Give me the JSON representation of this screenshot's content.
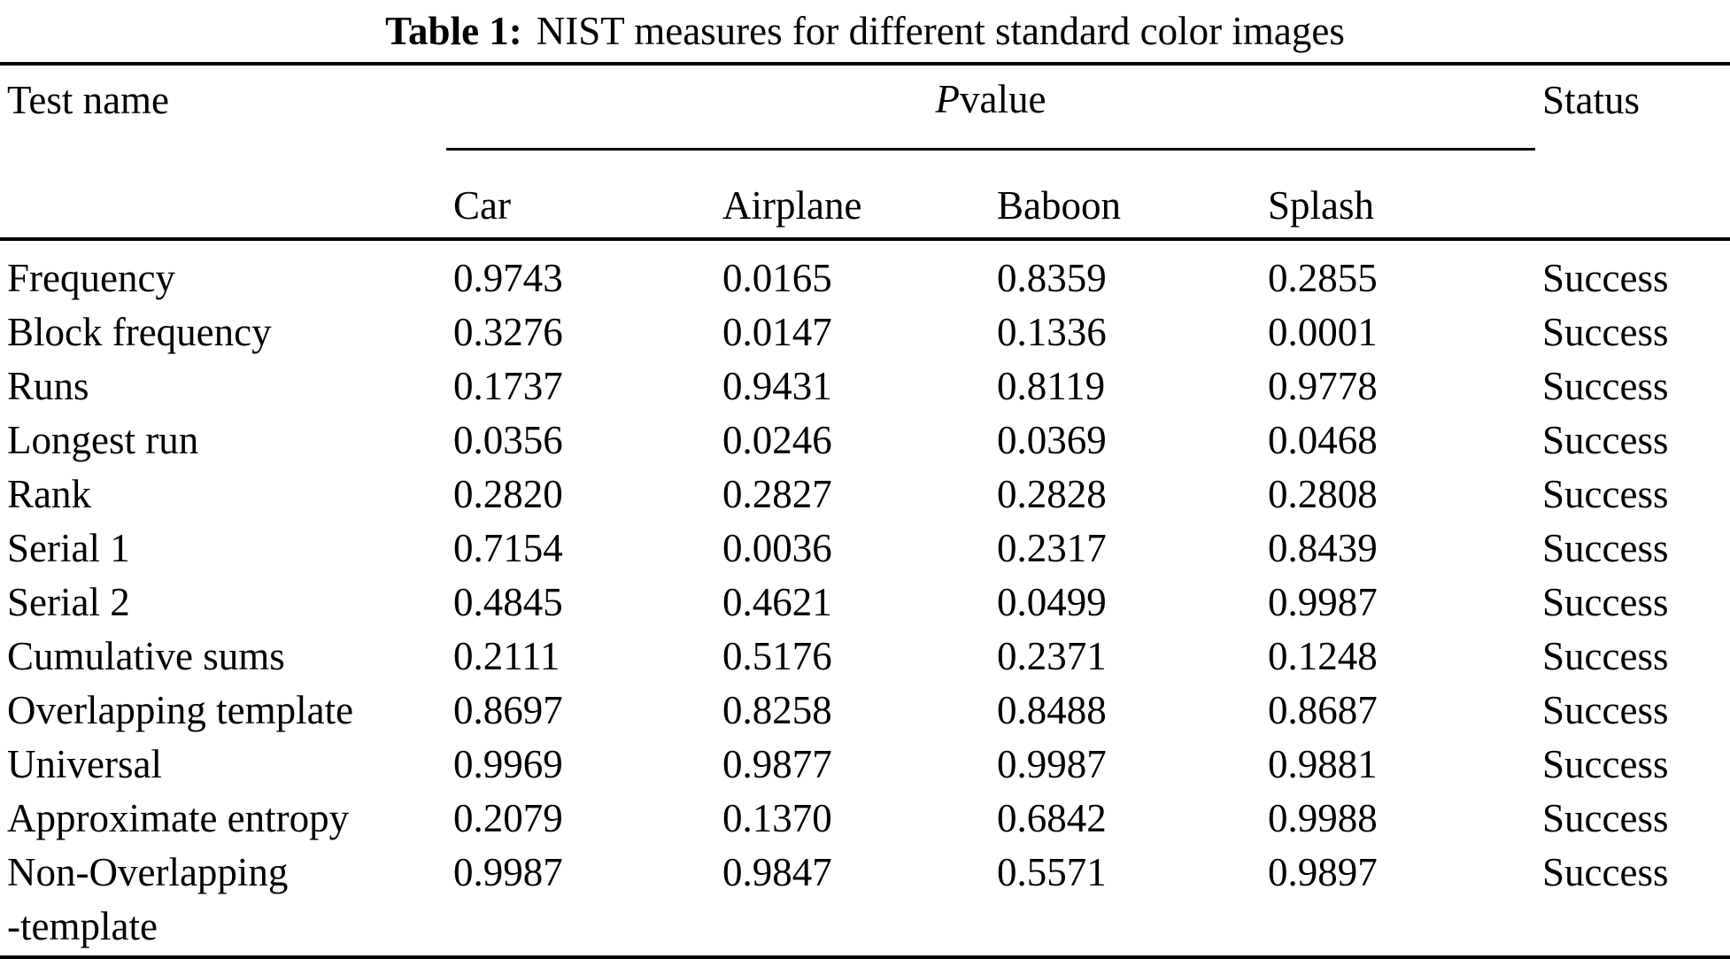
{
  "page": {
    "background_color": "#ffffff",
    "text_color": "#000000",
    "rule_color": "#000000"
  },
  "caption": {
    "label": "Table 1:",
    "title": "NIST measures for different standard color images"
  },
  "table": {
    "header": {
      "test_name": "Test name",
      "p_value_italic": "P",
      "p_value_rest": " value",
      "status": "Status",
      "images": [
        "Car",
        "Airplane",
        "Baboon",
        "Splash"
      ]
    },
    "rows": [
      {
        "test": "Frequency",
        "car": "0.9743",
        "airplane": "0.0165",
        "baboon": "0.8359",
        "splash": "0.2855",
        "status": "Success"
      },
      {
        "test": "Block frequency",
        "car": "0.3276",
        "airplane": "0.0147",
        "baboon": "0.1336",
        "splash": "0.0001",
        "status": "Success"
      },
      {
        "test": "Runs",
        "car": "0.1737",
        "airplane": "0.9431",
        "baboon": "0.8119",
        "splash": "0.9778",
        "status": "Success"
      },
      {
        "test": "Longest run",
        "car": "0.0356",
        "airplane": "0.0246",
        "baboon": "0.0369",
        "splash": "0.0468",
        "status": "Success"
      },
      {
        "test": "Rank",
        "car": "0.2820",
        "airplane": "0.2827",
        "baboon": "0.2828",
        "splash": "0.2808",
        "status": "Success"
      },
      {
        "test": "Serial 1",
        "car": "0.7154",
        "airplane": "0.0036",
        "baboon": "0.2317",
        "splash": "0.8439",
        "status": "Success"
      },
      {
        "test": "Serial 2",
        "car": "0.4845",
        "airplane": "0.4621",
        "baboon": "0.0499",
        "splash": "0.9987",
        "status": "Success"
      },
      {
        "test": "Cumulative sums",
        "car": "0.2111",
        "airplane": "0.5176",
        "baboon": "0.2371",
        "splash": "0.1248",
        "status": "Success"
      },
      {
        "test": "Overlapping template",
        "car": "0.8697",
        "airplane": "0.8258",
        "baboon": "0.8488",
        "splash": "0.8687",
        "status": "Success"
      },
      {
        "test": "Universal",
        "car": "0.9969",
        "airplane": "0.9877",
        "baboon": "0.9987",
        "splash": "0.9881",
        "status": "Success"
      },
      {
        "test": "Approximate entropy",
        "car": "0.2079",
        "airplane": "0.1370",
        "baboon": "0.6842",
        "splash": "0.9988",
        "status": "Success"
      },
      {
        "test": "Non-Overlapping\n-template",
        "car": "0.9987",
        "airplane": "0.9847",
        "baboon": "0.5571",
        "splash": "0.9897",
        "status": "Success"
      }
    ]
  }
}
